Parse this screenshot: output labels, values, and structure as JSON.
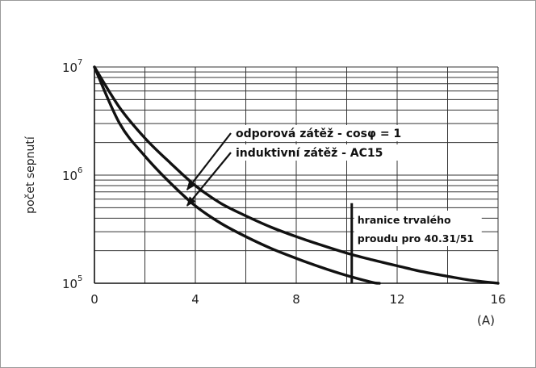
{
  "chart_data": {
    "type": "line",
    "title": "",
    "xlabel": "",
    "x_unit": "(A)",
    "ylabel": "počet sepnutí",
    "xlim": [
      0,
      16
    ],
    "ylim": [
      100000,
      10000000
    ],
    "y_scale": "log",
    "grid": true,
    "x_ticks": [
      0,
      4,
      8,
      12,
      16
    ],
    "x_tick_labels": [
      "0",
      "4",
      "8",
      "12",
      "16"
    ],
    "y_ticks": [
      {
        "value": 100000,
        "base": "10",
        "exp": "5"
      },
      {
        "value": 1000000,
        "base": "10",
        "exp": "6"
      },
      {
        "value": 10000000,
        "base": "10",
        "exp": "7"
      }
    ],
    "series": [
      {
        "name": "odporová zátěž - cosφ = 1",
        "x": [
          0,
          1,
          2,
          3,
          4,
          5,
          6,
          7,
          8,
          9,
          10,
          11,
          12,
          13,
          14,
          15,
          16
        ],
        "y": [
          10000000,
          4200000,
          2200000,
          1300000,
          800000,
          550000,
          420000,
          330000,
          270000,
          225000,
          190000,
          165000,
          145000,
          128000,
          116000,
          106000,
          100000
        ]
      },
      {
        "name": "induktivní zátěž - AC15",
        "x": [
          0,
          1,
          2,
          3,
          4,
          5,
          6,
          7,
          8,
          9,
          10,
          11,
          11.3
        ],
        "y": [
          10000000,
          3000000,
          1500000,
          850000,
          520000,
          360000,
          270000,
          210000,
          170000,
          140000,
          118000,
          102000,
          100000
        ]
      }
    ],
    "annotations": [
      {
        "text": "odporová zátěž - cosφ = 1",
        "target_series": 0,
        "point": [
          3.8,
          900000
        ]
      },
      {
        "text": "induktivní zátěž - AC15",
        "target_series": 1,
        "point": [
          3.8,
          640000
        ]
      }
    ],
    "limit_line": {
      "x": 10.2,
      "y_top": 550000,
      "label_line1": "hranice trvalého",
      "label_line2": "proudu pro 40.31/51"
    }
  }
}
